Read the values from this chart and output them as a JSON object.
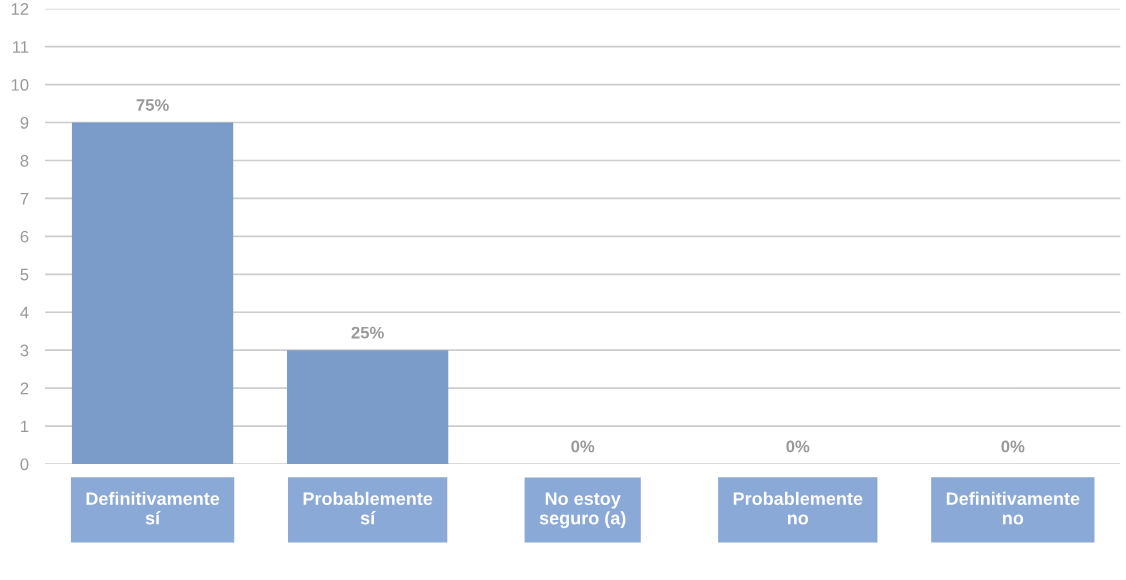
{
  "chart_data": {
    "type": "bar",
    "categories": [
      "Definitivamente\nsí",
      "Probablemente\nsí",
      "No estoy\nseguro (a)",
      "Probablemente\nno",
      "Definitivamente\nno"
    ],
    "values": [
      9,
      3,
      0,
      0,
      0
    ],
    "annotations": [
      {
        "text": "75%",
        "x": "Definitivamente\nsí",
        "y": 9
      },
      {
        "text": "25%",
        "x": "Probablemente\nsí",
        "y": 3
      },
      {
        "text": "0%",
        "x": "No estoy\nseguro (a)",
        "y": 0
      },
      {
        "text": "0%",
        "x": "Probablemente\nno",
        "y": 0
      },
      {
        "text": "0%",
        "x": "Definitivamente\nno",
        "y": 0
      }
    ],
    "color": "#7b9cc8",
    "ylim": [
      0,
      12
    ],
    "yticks": [
      0,
      1,
      2,
      3,
      4,
      5,
      6,
      7,
      8,
      9,
      10,
      11,
      12
    ],
    "grid": "y",
    "legend": false
  }
}
